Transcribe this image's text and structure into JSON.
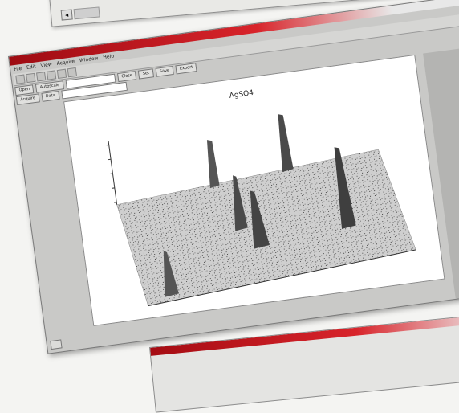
{
  "top_card": {
    "scroll_arrow": "◂"
  },
  "window": {
    "title": "",
    "menu": [
      "File",
      "Edit",
      "View",
      "Acquire",
      "Window",
      "Help"
    ],
    "toolbar_label": "",
    "controls_row1": [
      "Open",
      "Autoscale",
      "",
      "Close",
      "Set",
      "Save",
      "Export"
    ],
    "controls_row2": [
      "Acquire",
      "Data",
      ""
    ],
    "bottom_tab": ""
  },
  "plot": {
    "title": "AgSO4",
    "x_label": "",
    "y_label": ""
  },
  "bottom_card": {
    "label": ""
  },
  "colors": {
    "titlebar_red": "#d8242b",
    "panel_gray": "#c9c9c7"
  }
}
